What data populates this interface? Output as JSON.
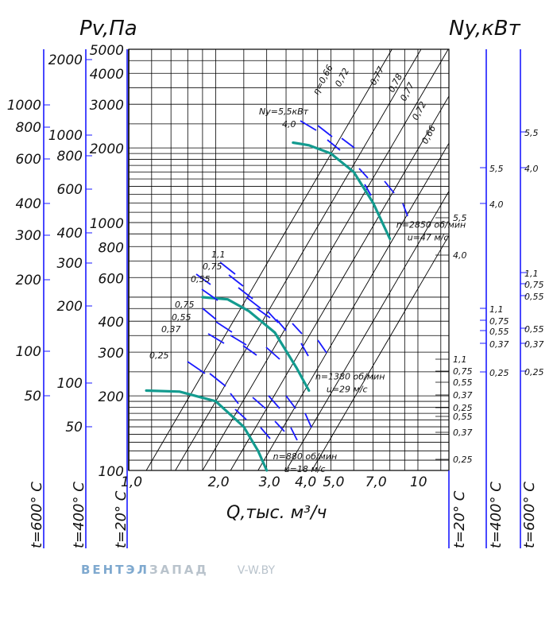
{
  "axis_titles": {
    "pressure": "Pv,Па",
    "power": "Ny,кВт",
    "flow": "Q,тыс. м³/ч"
  },
  "temperature_labels": {
    "t600": "t=600° C",
    "t400": "t=400° C",
    "t20": "t=20° C"
  },
  "watermark": {
    "brand_a": "ВЕНТЭЛ",
    "brand_b": "ЗАПАД",
    "site": "V-W.BY"
  },
  "colors": {
    "grid": "#000000",
    "blue": "#1a1aff",
    "teal": "#139b8f",
    "watermark": "#7fa9cf"
  },
  "chart_data": {
    "type": "line",
    "scale": "log-log",
    "xlim": [
      1.0,
      12.8
    ],
    "ylim": [
      100,
      5000
    ],
    "x_ticks": [
      "1,0",
      "2,0",
      "3,0",
      "4,0",
      "5,0",
      "7,0",
      "10"
    ],
    "x_tick_values": [
      1,
      2,
      3,
      4,
      5,
      7,
      10
    ],
    "y_ticks": [
      "100",
      "200",
      "300",
      "400",
      "600",
      "800",
      "1000",
      "2000",
      "3000",
      "4000",
      "5000"
    ],
    "y_tick_values": [
      100,
      200,
      300,
      400,
      600,
      800,
      1000,
      2000,
      3000,
      4000,
      5000
    ],
    "y_ticks_t400": [
      "50",
      "100",
      "200",
      "300",
      "400",
      "600",
      "800",
      "1000",
      "2000"
    ],
    "y_ticks_t600": [
      "50",
      "100",
      "200",
      "300",
      "400",
      "600",
      "800",
      "1000"
    ],
    "series": [
      {
        "name": "n=2850 об/мин",
        "u_label": "u=47 м/с",
        "points": [
          [
            3.7,
            2100
          ],
          [
            4.2,
            2050
          ],
          [
            5.0,
            1900
          ],
          [
            6.0,
            1600
          ],
          [
            7.0,
            1200
          ],
          [
            8.0,
            860
          ]
        ]
      },
      {
        "name": "n=1380 об/мин",
        "u_label": "u=29 м/с",
        "points": [
          [
            1.8,
            500
          ],
          [
            2.2,
            490
          ],
          [
            2.6,
            440
          ],
          [
            3.2,
            360
          ],
          [
            3.8,
            260
          ],
          [
            4.2,
            210
          ]
        ]
      },
      {
        "name": "n=880 об/мин",
        "u_label": "u=18 м/с",
        "points": [
          [
            1.15,
            210
          ],
          [
            1.5,
            208
          ],
          [
            2.0,
            190
          ],
          [
            2.5,
            150
          ],
          [
            2.8,
            120
          ],
          [
            3.0,
            100
          ]
        ]
      }
    ],
    "efficiency_labels": [
      "η=0,66",
      "0,72",
      "0,77",
      "0,78",
      "0,77",
      "0,72",
      "0,66"
    ],
    "power_labels_left": {
      "n2850": [
        "Ny=5,5кВт",
        "4,0"
      ],
      "n1380": [
        "1,1",
        "0,75",
        "0,55"
      ],
      "n880": [
        "0,75",
        "0,55",
        "0,37",
        "0,25"
      ]
    },
    "power_axis_t20": [
      "5,5",
      "4,0",
      "1,1",
      "0,75",
      "0,55",
      "0,37",
      "0,25",
      "0,55",
      "0,37",
      "0,25"
    ],
    "power_axis_t400": [
      "5,5",
      "4,0",
      "1,1",
      "0,75",
      "0,55",
      "0,37",
      "0,25"
    ],
    "power_axis_t600": [
      "5,5",
      "4,0",
      "1,1",
      "0,75",
      "0,55",
      "0,55",
      "0,37",
      "0,25"
    ],
    "grid": true
  }
}
